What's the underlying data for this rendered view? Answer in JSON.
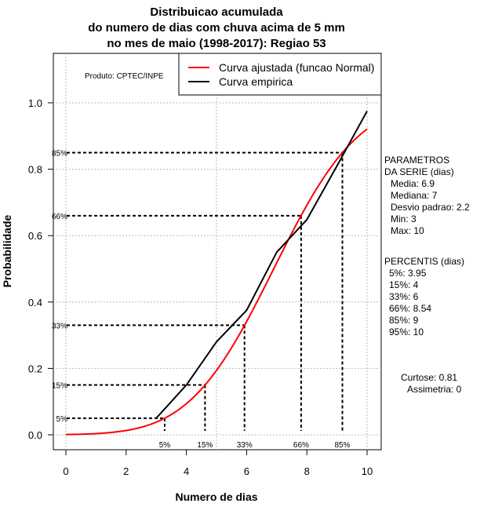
{
  "chart_data": {
    "type": "line",
    "title": [
      "Distribuicao acumulada",
      "do numero de dias com chuva acima de 5 mm",
      "no mes de maio (1998-2017): Regiao 53"
    ],
    "xlabel": "Numero de dias",
    "ylabel": "Probabilidade",
    "xlim": [
      0,
      10
    ],
    "ylim": [
      0,
      1
    ],
    "xticks": [
      "0",
      "2",
      "4",
      "6",
      "8",
      "10"
    ],
    "yticks": [
      "0.0",
      "0.2",
      "0.4",
      "0.6",
      "0.8",
      "1.0"
    ],
    "grid": true,
    "product_label": "Produto: CPTEC/INPE",
    "legend": {
      "placement": "top-right",
      "entries": [
        "Curva ajustada (funcao Normal)",
        "Curva empirica"
      ]
    },
    "series": [
      {
        "name": "Curva ajustada (funcao Normal)",
        "color": "#ff0000",
        "distribution": "normal",
        "mean": 6.9,
        "sd": 2.2,
        "x_range": [
          0,
          10
        ]
      },
      {
        "name": "Curva empirica",
        "color": "#000000",
        "x": [
          3,
          4,
          5,
          6,
          7,
          8,
          9,
          10
        ],
        "y": [
          0.05,
          0.15,
          0.28,
          0.375,
          0.55,
          0.648,
          0.81,
          0.975
        ]
      }
    ],
    "percentile_markers": [
      {
        "label": "5%",
        "p": 0.05,
        "x": 3.28
      },
      {
        "label": "15%",
        "p": 0.15,
        "x": 4.62
      },
      {
        "label": "33%",
        "p": 0.33,
        "x": 5.93
      },
      {
        "label": "66%",
        "p": 0.66,
        "x": 7.81
      },
      {
        "label": "85%",
        "p": 0.85,
        "x": 9.18
      }
    ],
    "parameters": {
      "heading": [
        "PARAMETROS",
        "DA SERIE (dias)"
      ],
      "lines": [
        "Media: 6.9",
        "Mediana: 7",
        "Desvio padrao: 2.2",
        "Min: 3",
        "Max: 10"
      ]
    },
    "percentiles": {
      "heading": "PERCENTIS (dias)",
      "lines": [
        "5%: 3.95",
        "15%: 4",
        "33%: 6",
        "66%: 8.54",
        "85%: 9",
        "95%: 10"
      ]
    },
    "shape": [
      "Curtose: 0.81",
      "Assimetria: 0"
    ]
  }
}
